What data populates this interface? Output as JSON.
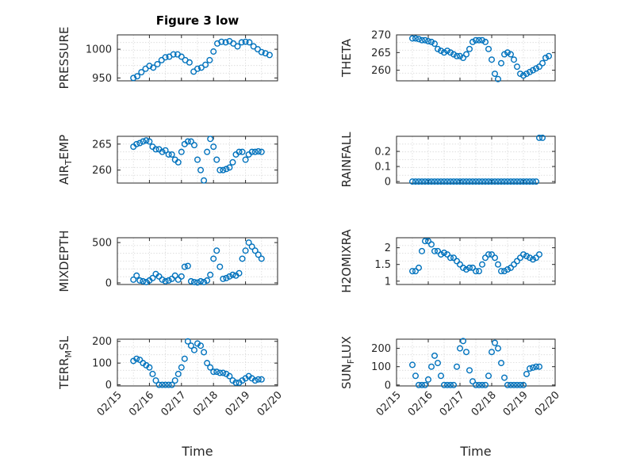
{
  "figure_title": "Figure 3 low",
  "marker_color": "#0072BD",
  "chart_data": [
    {
      "type": "scatter",
      "panel": "top-left",
      "ylabel": "PRESSURE",
      "title": "Figure 3 low",
      "ylim": [
        945,
        1025
      ],
      "yticks": [
        950,
        1000
      ],
      "ytick_labels": [
        "950",
        "1000"
      ],
      "xlim": [
        0,
        5
      ],
      "xtick_labels": [],
      "xlabel": "",
      "x": [
        0.5,
        0.62,
        0.75,
        0.88,
        1.0,
        1.12,
        1.25,
        1.38,
        1.5,
        1.62,
        1.75,
        1.88,
        2.0,
        2.12,
        2.25,
        2.38,
        2.5,
        2.62,
        2.75,
        2.88,
        3.0,
        3.12,
        3.25,
        3.38,
        3.5,
        3.62,
        3.75,
        3.88,
        4.0,
        4.12,
        4.25,
        4.38,
        4.5,
        4.62,
        4.75
      ],
      "y": [
        950,
        953,
        960,
        966,
        971,
        968,
        974,
        981,
        986,
        987,
        991,
        991,
        987,
        981,
        977,
        961,
        966,
        968,
        973,
        981,
        996,
        1010,
        1013,
        1012,
        1014,
        1010,
        1005,
        1012,
        1013,
        1012,
        1005,
        1000,
        995,
        993,
        990
      ]
    },
    {
      "type": "scatter",
      "panel": "top-right",
      "ylabel": "THETA",
      "ylim": [
        257,
        270
      ],
      "yticks": [
        260,
        265,
        270
      ],
      "ytick_labels": [
        "260",
        "265",
        "270"
      ],
      "xlim": [
        0,
        5
      ],
      "xtick_labels": [],
      "xlabel": "",
      "x": [
        0.5,
        0.6,
        0.7,
        0.8,
        0.9,
        1.0,
        1.1,
        1.2,
        1.3,
        1.4,
        1.5,
        1.6,
        1.7,
        1.8,
        1.9,
        2.0,
        2.1,
        2.2,
        2.3,
        2.4,
        2.5,
        2.6,
        2.7,
        2.8,
        2.9,
        3.0,
        3.1,
        3.2,
        3.3,
        3.4,
        3.5,
        3.6,
        3.7,
        3.8,
        3.9,
        4.0,
        4.1,
        4.2,
        4.3,
        4.4,
        4.5,
        4.6,
        4.7,
        4.8
      ],
      "y": [
        269,
        269,
        268.8,
        268.5,
        268.5,
        268.2,
        268,
        267.5,
        266,
        265.5,
        265,
        265.5,
        265,
        264.5,
        264,
        264,
        263.5,
        264.5,
        266,
        268,
        268.5,
        268.5,
        268.5,
        268,
        266,
        263,
        259,
        257.5,
        262,
        264.5,
        265,
        264.5,
        263,
        261,
        259,
        258.5,
        259,
        259.5,
        260,
        260.5,
        261,
        262,
        263.5,
        264
      ]
    },
    {
      "type": "scatter",
      "panel": "mid-left",
      "ylabel": "AIR_TEMP",
      "ylim": [
        257.5,
        266.5
      ],
      "yticks": [
        260,
        265
      ],
      "ytick_labels": [
        "260",
        "265"
      ],
      "xlim": [
        0,
        5
      ],
      "xtick_labels": [],
      "xlabel": "",
      "x": [
        0.5,
        0.6,
        0.7,
        0.8,
        0.9,
        1.0,
        1.1,
        1.2,
        1.3,
        1.4,
        1.5,
        1.6,
        1.7,
        1.8,
        1.9,
        2.0,
        2.1,
        2.2,
        2.3,
        2.4,
        2.5,
        2.6,
        2.7,
        2.8,
        2.9,
        3.0,
        3.1,
        3.2,
        3.3,
        3.4,
        3.5,
        3.6,
        3.7,
        3.8,
        3.9,
        4.0,
        4.1,
        4.2,
        4.3,
        4.4,
        4.5
      ],
      "y": [
        264.5,
        265,
        265.2,
        265.5,
        265.7,
        265.5,
        264.5,
        264,
        264,
        263.5,
        263.8,
        263,
        263,
        262,
        261.5,
        263.5,
        265,
        265.5,
        265.5,
        264.8,
        262,
        260,
        258,
        263.5,
        266,
        264.5,
        262,
        260,
        260,
        260.2,
        260.5,
        261.5,
        263,
        263.5,
        263.5,
        262,
        263,
        263.5,
        263.5,
        263.6,
        263.5
      ]
    },
    {
      "type": "scatter",
      "panel": "mid-right",
      "ylabel": "RAINFALL",
      "ylim": [
        -0.01,
        0.3
      ],
      "yticks": [
        0,
        0.1,
        0.2
      ],
      "ytick_labels": [
        "0",
        "0.1",
        "0.2"
      ],
      "xlim": [
        0,
        5
      ],
      "xtick_labels": [],
      "xlabel": "",
      "x": [
        0.5,
        0.6,
        0.7,
        0.8,
        0.9,
        1.0,
        1.1,
        1.2,
        1.3,
        1.4,
        1.5,
        1.6,
        1.7,
        1.8,
        1.9,
        2.0,
        2.1,
        2.2,
        2.3,
        2.4,
        2.5,
        2.6,
        2.7,
        2.8,
        2.9,
        3.0,
        3.1,
        3.2,
        3.3,
        3.4,
        3.5,
        3.6,
        3.7,
        3.8,
        3.9,
        4.0,
        4.1,
        4.2,
        4.3,
        4.4,
        4.5,
        4.6
      ],
      "y": [
        0,
        0,
        0,
        0,
        0,
        0,
        0,
        0,
        0,
        0,
        0,
        0,
        0,
        0,
        0,
        0,
        0,
        0,
        0,
        0,
        0,
        0,
        0,
        0,
        0,
        0,
        0,
        0,
        0,
        0,
        0,
        0,
        0,
        0,
        0,
        0,
        0,
        0,
        0,
        0,
        0.29,
        0.29
      ]
    },
    {
      "type": "scatter",
      "panel": "lower-left",
      "ylabel": "MIXDEPTH",
      "ylim": [
        -20,
        560
      ],
      "yticks": [
        0,
        500
      ],
      "ytick_labels": [
        "0",
        "500"
      ],
      "xlim": [
        0,
        5
      ],
      "xtick_labels": [],
      "xlabel": "",
      "x": [
        0.5,
        0.6,
        0.7,
        0.8,
        0.9,
        1.0,
        1.1,
        1.2,
        1.3,
        1.4,
        1.5,
        1.6,
        1.7,
        1.8,
        1.9,
        2.0,
        2.1,
        2.2,
        2.3,
        2.4,
        2.5,
        2.6,
        2.7,
        2.8,
        2.9,
        3.0,
        3.1,
        3.2,
        3.3,
        3.4,
        3.5,
        3.6,
        3.7,
        3.8,
        3.9,
        4.0,
        4.1,
        4.2,
        4.3,
        4.4,
        4.5
      ],
      "y": [
        40,
        90,
        30,
        20,
        10,
        30,
        60,
        110,
        80,
        40,
        20,
        30,
        50,
        90,
        40,
        80,
        200,
        210,
        20,
        10,
        5,
        20,
        10,
        30,
        100,
        300,
        400,
        200,
        50,
        60,
        80,
        100,
        90,
        120,
        300,
        400,
        500,
        450,
        400,
        350,
        300
      ]
    },
    {
      "type": "scatter",
      "panel": "lower-right",
      "ylabel": "H2OMIXRA",
      "ylim": [
        0.9,
        2.3
      ],
      "yticks": [
        1,
        1.5,
        2
      ],
      "ytick_labels": [
        "1",
        "1.5",
        "2"
      ],
      "xlim": [
        0,
        5
      ],
      "xtick_labels": [],
      "xlabel": "",
      "x": [
        0.5,
        0.6,
        0.7,
        0.8,
        0.9,
        1.0,
        1.1,
        1.2,
        1.3,
        1.4,
        1.5,
        1.6,
        1.7,
        1.8,
        1.9,
        2.0,
        2.1,
        2.2,
        2.3,
        2.4,
        2.5,
        2.6,
        2.7,
        2.8,
        2.9,
        3.0,
        3.1,
        3.2,
        3.3,
        3.4,
        3.5,
        3.6,
        3.7,
        3.8,
        3.9,
        4.0,
        4.1,
        4.2,
        4.3,
        4.4,
        4.5
      ],
      "y": [
        1.3,
        1.3,
        1.4,
        1.9,
        2.2,
        2.2,
        2.1,
        1.9,
        1.9,
        1.8,
        1.85,
        1.8,
        1.7,
        1.7,
        1.6,
        1.5,
        1.4,
        1.35,
        1.4,
        1.4,
        1.3,
        1.3,
        1.5,
        1.7,
        1.8,
        1.8,
        1.7,
        1.5,
        1.3,
        1.3,
        1.35,
        1.4,
        1.5,
        1.6,
        1.7,
        1.8,
        1.75,
        1.7,
        1.65,
        1.7,
        1.8
      ]
    },
    {
      "type": "scatter",
      "panel": "bottom-left",
      "ylabel": "TERR_MSL",
      "ylim": [
        -5,
        210
      ],
      "yticks": [
        0,
        100,
        200
      ],
      "ytick_labels": [
        "0",
        "100",
        "200"
      ],
      "xlim": [
        0,
        5
      ],
      "xtick_labels": [
        "02/15",
        "02/16",
        "02/17",
        "02/18",
        "02/19",
        "02/20"
      ],
      "xlabel": "Time",
      "x": [
        0.5,
        0.6,
        0.7,
        0.8,
        0.9,
        1.0,
        1.1,
        1.2,
        1.3,
        1.4,
        1.5,
        1.6,
        1.7,
        1.8,
        1.9,
        2.0,
        2.1,
        2.2,
        2.3,
        2.4,
        2.5,
        2.6,
        2.7,
        2.8,
        2.9,
        3.0,
        3.1,
        3.2,
        3.3,
        3.4,
        3.5,
        3.6,
        3.7,
        3.8,
        3.9,
        4.0,
        4.1,
        4.2,
        4.3,
        4.4,
        4.5
      ],
      "y": [
        110,
        120,
        115,
        100,
        90,
        80,
        50,
        20,
        0,
        0,
        0,
        0,
        0,
        20,
        50,
        80,
        120,
        200,
        180,
        160,
        190,
        180,
        150,
        100,
        80,
        60,
        60,
        55,
        55,
        50,
        40,
        20,
        10,
        10,
        20,
        30,
        40,
        30,
        20,
        25,
        25
      ]
    },
    {
      "type": "scatter",
      "panel": "bottom-right",
      "ylabel": "SUN_FLUX",
      "ylim": [
        -5,
        250
      ],
      "yticks": [
        0,
        100,
        200
      ],
      "ytick_labels": [
        "0",
        "100",
        "200"
      ],
      "xlim": [
        0,
        5
      ],
      "xtick_labels": [
        "02/15",
        "02/16",
        "02/17",
        "02/18",
        "02/19",
        "02/20"
      ],
      "xlabel": "Time",
      "x": [
        0.5,
        0.6,
        0.7,
        0.8,
        0.9,
        1.0,
        1.1,
        1.2,
        1.3,
        1.4,
        1.5,
        1.6,
        1.7,
        1.8,
        1.9,
        2.0,
        2.1,
        2.2,
        2.3,
        2.4,
        2.5,
        2.6,
        2.7,
        2.8,
        2.9,
        3.0,
        3.1,
        3.2,
        3.3,
        3.4,
        3.5,
        3.6,
        3.7,
        3.8,
        3.9,
        4.0,
        4.1,
        4.2,
        4.3,
        4.4,
        4.5
      ],
      "y": [
        110,
        50,
        0,
        0,
        0,
        30,
        100,
        160,
        120,
        50,
        0,
        0,
        0,
        0,
        100,
        200,
        240,
        180,
        80,
        20,
        0,
        0,
        0,
        0,
        50,
        180,
        230,
        200,
        120,
        40,
        0,
        0,
        0,
        0,
        0,
        0,
        60,
        90,
        95,
        100,
        100
      ]
    }
  ]
}
